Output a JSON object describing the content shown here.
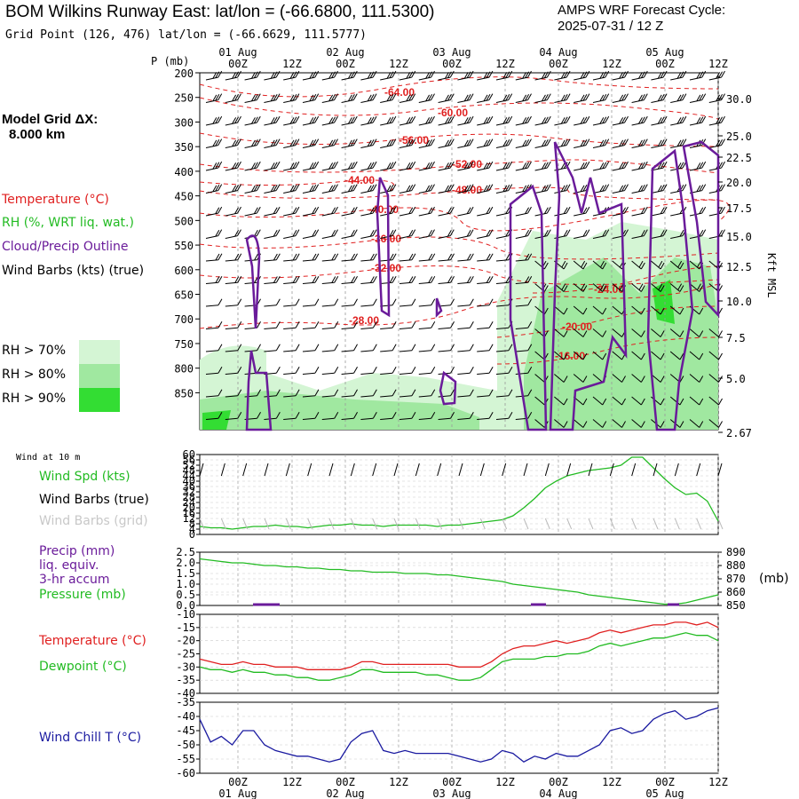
{
  "header": {
    "title": "BOM Wilkins Runway East:  lat/lon = (-66.6800, 111.5300)",
    "forecast_line1": "AMPS WRF Forecast Cycle:",
    "forecast_line2": "2025-07-31 / 12  Z",
    "grid_point": "Grid Point (126, 476) lat/lon = (-66.6629, 111.5777)"
  },
  "left_legend": {
    "model_grid_line1": "Model Grid ΔX:",
    "model_grid_line2": "8.000 km",
    "temperature": "Temperature (°C)",
    "rh": "RH (%, WRT liq. wat.)",
    "cloud": "Cloud/Precip Outline",
    "wind": "Wind Barbs (kts) (true)",
    "rh70": "RH > 70%",
    "rh80": "RH > 80%",
    "rh90": "RH > 90%",
    "colors": {
      "rh70": "#d4f5d4",
      "rh80": "#a0e8a0",
      "rh90": "#33dd33"
    }
  },
  "upper_axis": {
    "p_label": "P (mb)",
    "right_label": "Kft MSL",
    "top_days": [
      "01 Aug",
      "02 Aug",
      "03 Aug",
      "04 Aug",
      "05 Aug"
    ],
    "bottom_days": [
      "01 Aug",
      "02 Aug",
      "03 Aug",
      "04 Aug",
      "05 Aug"
    ],
    "times": [
      "00Z",
      "12Z",
      "00Z",
      "12Z",
      "00Z",
      "12Z",
      "00Z",
      "12Z",
      "00Z",
      "12Z"
    ]
  },
  "panel_labels": {
    "wind10": "Wind at 10 m",
    "wspd": "Wind Spd (kts)",
    "wbarbs_true": "Wind Barbs (true)",
    "wbarbs_grid": "Wind Barbs (grid)",
    "precip1": "Precip (mm)",
    "precip2": "liq. equiv.",
    "precip3": "3-hr accum",
    "pressure": "Pressure (mb)",
    "mb": "(mb)",
    "temp": "Temperature (°C)",
    "dew": "Dewpoint (°C)",
    "chill": "Wind Chill T (°C)"
  },
  "chart_data": [
    {
      "type": "heatmap",
      "name": "cross-section",
      "pressure_ticks": [
        "200",
        "250",
        "300",
        "350",
        "400",
        "450",
        "500",
        "550",
        "600",
        "650",
        "700",
        "750",
        "800",
        "850"
      ],
      "height_ticks": [
        "30.0",
        "25.0",
        "22.5",
        "20.0",
        "17.5",
        "15.0",
        "12.5",
        "10.0",
        "7.5",
        "5.0",
        "2.67"
      ],
      "temperature_contour_labels": [
        "-64.00",
        "-60.00",
        "-56.00",
        "-52.00",
        "-48.00",
        "-44.00",
        "-40.00",
        "-36.00",
        "-32.00",
        "-28.00",
        "-24.00",
        "-20.00",
        "-16.00"
      ]
    },
    {
      "type": "line",
      "name": "wind-speed-10m",
      "yticks": [
        "60",
        "56",
        "52",
        "48",
        "44",
        "40",
        "36",
        "32",
        "28",
        "24",
        "20",
        "16",
        "12",
        "8",
        "4",
        "0"
      ],
      "ylim": [
        0,
        60
      ],
      "series": [
        {
          "name": "Wind Spd (kts)",
          "color": "#22bb22",
          "values": [
            6,
            5,
            5,
            4,
            5,
            6,
            6,
            7,
            6,
            6,
            5,
            6,
            7,
            7,
            8,
            7,
            7,
            6,
            7,
            7,
            7,
            7,
            6,
            7,
            7,
            8,
            9,
            10,
            11,
            14,
            20,
            27,
            35,
            40,
            44,
            46,
            48,
            49,
            50,
            52,
            58,
            58,
            50,
            42,
            35,
            30,
            31,
            25,
            10
          ]
        }
      ]
    },
    {
      "type": "line",
      "name": "precip-pressure",
      "left_ticks": [
        "2.5",
        "2.0",
        "1.5",
        "1.0",
        "0.5",
        "0.0"
      ],
      "right_ticks": [
        "890",
        "880",
        "870",
        "860",
        "850"
      ],
      "precip": {
        "color": "#6a1b9a",
        "values": [
          0,
          0,
          0,
          0,
          0,
          0,
          0,
          0,
          0,
          0,
          0,
          0,
          0,
          0,
          0,
          0,
          0,
          0,
          0,
          0,
          0,
          0,
          0,
          0,
          0,
          0,
          0,
          0,
          0,
          0,
          0,
          0,
          0,
          0,
          0,
          0,
          0,
          0,
          0,
          0,
          0,
          0,
          0,
          0,
          0,
          0,
          0,
          0,
          0
        ]
      },
      "pressure": {
        "name": "Pressure (mb)",
        "color": "#22bb22",
        "values": [
          885,
          884,
          883,
          882,
          882,
          881,
          880,
          880,
          879,
          879,
          878,
          878,
          877,
          877,
          876,
          876,
          875,
          875,
          875,
          874,
          874,
          874,
          873,
          873,
          872,
          871,
          870,
          869,
          868,
          866,
          865,
          864,
          863,
          862,
          861,
          860,
          858,
          857,
          856,
          855,
          854,
          853,
          852,
          851,
          851,
          852,
          854,
          856,
          858
        ]
      }
    },
    {
      "type": "line",
      "name": "temperature-dewpoint",
      "yticks": [
        "-10",
        "-15",
        "-20",
        "-25",
        "-30",
        "-35",
        "-40"
      ],
      "ylim": [
        -40,
        -10
      ],
      "series": [
        {
          "name": "Temperature (°C)",
          "color": "#e02020",
          "values": [
            -27,
            -28,
            -29,
            -29,
            -28,
            -29,
            -29,
            -30,
            -30,
            -30,
            -31,
            -31,
            -31,
            -31,
            -30,
            -28,
            -28,
            -29,
            -29,
            -29,
            -29,
            -29,
            -29,
            -29,
            -30,
            -30,
            -30,
            -28,
            -25,
            -23,
            -22,
            -22,
            -21,
            -20,
            -21,
            -20,
            -19,
            -17,
            -16,
            -17,
            -16,
            -15,
            -14,
            -14,
            -13,
            -13,
            -14,
            -13,
            -15
          ]
        },
        {
          "name": "Dewpoint (°C)",
          "color": "#22bb22",
          "values": [
            -30,
            -31,
            -31,
            -32,
            -31,
            -32,
            -32,
            -33,
            -33,
            -34,
            -34,
            -35,
            -35,
            -34,
            -33,
            -31,
            -31,
            -32,
            -32,
            -32,
            -32,
            -33,
            -33,
            -34,
            -35,
            -35,
            -34,
            -31,
            -28,
            -27,
            -27,
            -27,
            -26,
            -26,
            -25,
            -25,
            -24,
            -22,
            -21,
            -22,
            -21,
            -20,
            -19,
            -19,
            -18,
            -17,
            -18,
            -18,
            -20
          ]
        }
      ]
    },
    {
      "type": "line",
      "name": "wind-chill",
      "yticks": [
        "-35",
        "-40",
        "-45",
        "-50",
        "-55",
        "-60"
      ],
      "ylim": [
        -60,
        -35
      ],
      "series": [
        {
          "name": "Wind Chill T (°C)",
          "color": "#1a1aa0",
          "values": [
            -41,
            -49,
            -47,
            -50,
            -45,
            -45,
            -50,
            -52,
            -53,
            -54,
            -54,
            -55,
            -56,
            -55,
            -49,
            -46,
            -45,
            -52,
            -53,
            -52,
            -53,
            -53,
            -53,
            -53,
            -54,
            -55,
            -56,
            -55,
            -52,
            -53,
            -56,
            -54,
            -55,
            -53,
            -54,
            -54,
            -52,
            -50,
            -45,
            -44,
            -46,
            -45,
            -41,
            -39,
            -38,
            -41,
            -40,
            -38,
            -37
          ]
        }
      ]
    }
  ]
}
